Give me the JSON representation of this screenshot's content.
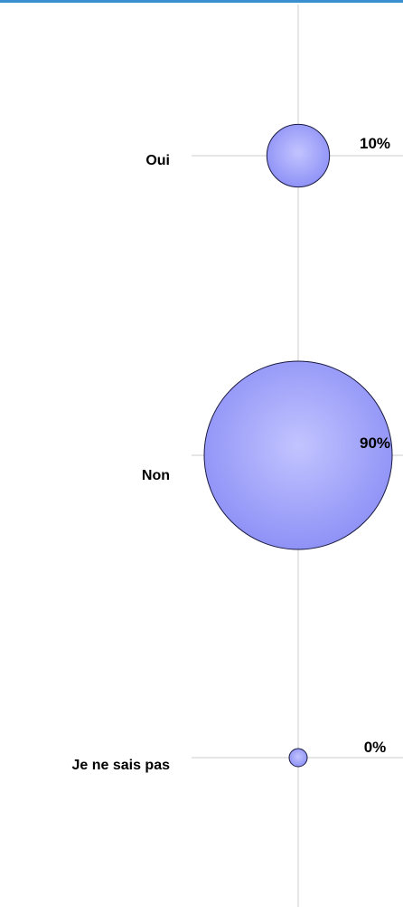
{
  "chart_data": {
    "type": "bubble",
    "title": "",
    "categories": [
      "Oui",
      "Non",
      "Je ne sais pas"
    ],
    "values": [
      10,
      90,
      0
    ],
    "value_labels": [
      "10%",
      "90%",
      "0%"
    ],
    "unit": "%",
    "grid": true,
    "legend": "none",
    "colors": {
      "bubble_center": "#c2c4ff",
      "bubble_edge": "#8f92f6",
      "bubble_stroke": "#1a1a40",
      "grid": "#cccccc",
      "accent_rule": "#3a8fd0"
    }
  }
}
